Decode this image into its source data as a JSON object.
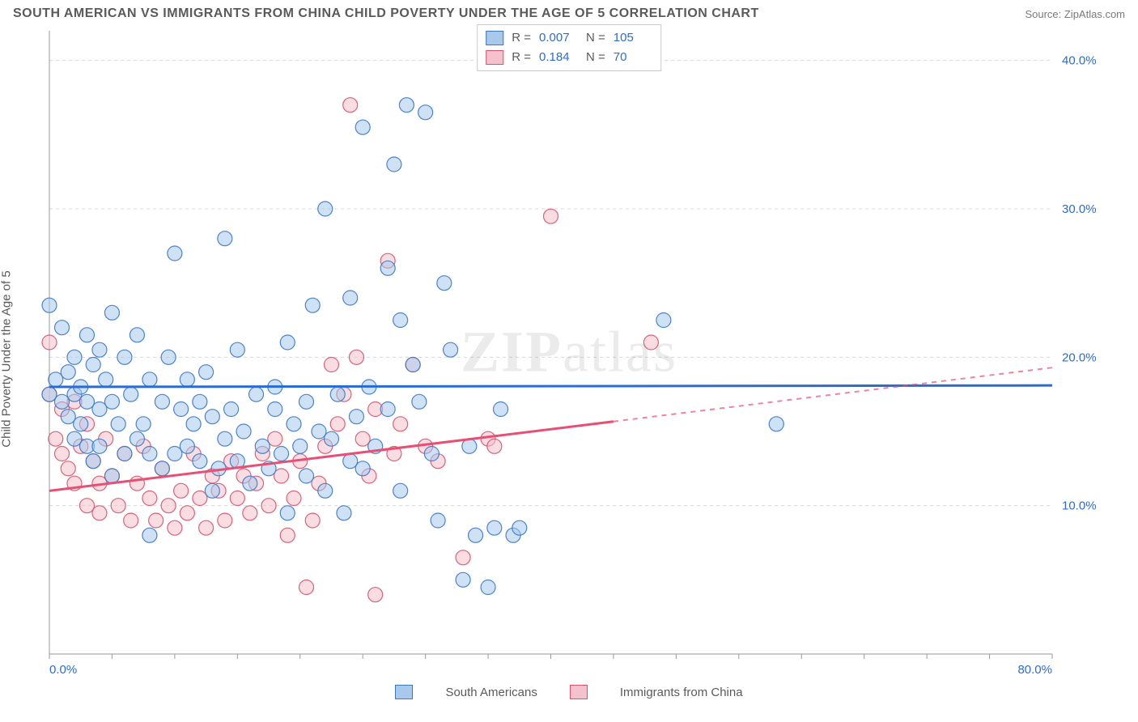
{
  "title": "SOUTH AMERICAN VS IMMIGRANTS FROM CHINA CHILD POVERTY UNDER THE AGE OF 5 CORRELATION CHART",
  "source_label": "Source: ZipAtlas.com",
  "y_axis_label": "Child Poverty Under the Age of 5",
  "watermark_bold": "ZIP",
  "watermark_rest": "atlas",
  "chart": {
    "type": "scatter",
    "xlim": [
      0,
      80
    ],
    "ylim": [
      0,
      42
    ],
    "x_ticks": [
      0,
      80
    ],
    "x_tick_labels": [
      "0.0%",
      "80.0%"
    ],
    "y_ticks": [
      10,
      20,
      30,
      40
    ],
    "y_tick_labels": [
      "10.0%",
      "20.0%",
      "30.0%",
      "40.0%"
    ],
    "grid_color": "#d8d8d8",
    "axis_color": "#9a9a9a",
    "tick_label_color": "#2b6cd4",
    "tick_fontsize": 15,
    "background_color": "#ffffff",
    "marker_radius": 9,
    "marker_opacity": 0.55,
    "series": [
      {
        "name": "South Americans",
        "fill_color": "#a8c8ec",
        "stroke_color": "#3b78c4",
        "R": "0.007",
        "N": "105",
        "trend": {
          "y_at_x0": 18.0,
          "y_at_x80": 18.1,
          "solid_until_x": 80,
          "line_color": "#2b6cd4",
          "line_width": 3
        },
        "points": [
          [
            0,
            23.5
          ],
          [
            0,
            17.5
          ],
          [
            0.5,
            18.5
          ],
          [
            1,
            17
          ],
          [
            1,
            22
          ],
          [
            1.5,
            16
          ],
          [
            1.5,
            19
          ],
          [
            2,
            20
          ],
          [
            2,
            14.5
          ],
          [
            2,
            17.5
          ],
          [
            2.5,
            18
          ],
          [
            2.5,
            15.5
          ],
          [
            3,
            21.5
          ],
          [
            3,
            14
          ],
          [
            3,
            17
          ],
          [
            3.5,
            19.5
          ],
          [
            3.5,
            13
          ],
          [
            4,
            16.5
          ],
          [
            4,
            20.5
          ],
          [
            4,
            14
          ],
          [
            4.5,
            18.5
          ],
          [
            5,
            17
          ],
          [
            5,
            23
          ],
          [
            5,
            12
          ],
          [
            5.5,
            15.5
          ],
          [
            6,
            20
          ],
          [
            6,
            13.5
          ],
          [
            6.5,
            17.5
          ],
          [
            7,
            21.5
          ],
          [
            7,
            14.5
          ],
          [
            7.5,
            15.5
          ],
          [
            8,
            18.5
          ],
          [
            8,
            13.5
          ],
          [
            8,
            8
          ],
          [
            9,
            17
          ],
          [
            9,
            12.5
          ],
          [
            9.5,
            20
          ],
          [
            10,
            13.5
          ],
          [
            10,
            27
          ],
          [
            10.5,
            16.5
          ],
          [
            11,
            18.5
          ],
          [
            11,
            14
          ],
          [
            11.5,
            15.5
          ],
          [
            12,
            17
          ],
          [
            12,
            13
          ],
          [
            12.5,
            19
          ],
          [
            13,
            11
          ],
          [
            13,
            16
          ],
          [
            13.5,
            12.5
          ],
          [
            14,
            28
          ],
          [
            14,
            14.5
          ],
          [
            14.5,
            16.5
          ],
          [
            15,
            13
          ],
          [
            15,
            20.5
          ],
          [
            15.5,
            15
          ],
          [
            16,
            11.5
          ],
          [
            16.5,
            17.5
          ],
          [
            17,
            14
          ],
          [
            17.5,
            12.5
          ],
          [
            18,
            18
          ],
          [
            18,
            16.5
          ],
          [
            18.5,
            13.5
          ],
          [
            19,
            21
          ],
          [
            19,
            9.5
          ],
          [
            19.5,
            15.5
          ],
          [
            20,
            14
          ],
          [
            20.5,
            17
          ],
          [
            20.5,
            12
          ],
          [
            21,
            23.5
          ],
          [
            21.5,
            15
          ],
          [
            22,
            11
          ],
          [
            22,
            30
          ],
          [
            22.5,
            14.5
          ],
          [
            23,
            17.5
          ],
          [
            23.5,
            9.5
          ],
          [
            24,
            24
          ],
          [
            24,
            13
          ],
          [
            24.5,
            16
          ],
          [
            25,
            12.5
          ],
          [
            25,
            35.5
          ],
          [
            25.5,
            18
          ],
          [
            26,
            14
          ],
          [
            27,
            16.5
          ],
          [
            27,
            26
          ],
          [
            27.5,
            33
          ],
          [
            28,
            11
          ],
          [
            28,
            22.5
          ],
          [
            28.5,
            37
          ],
          [
            29,
            19.5
          ],
          [
            29.5,
            17
          ],
          [
            30,
            36.5
          ],
          [
            30.5,
            13.5
          ],
          [
            31,
            9
          ],
          [
            31.5,
            25
          ],
          [
            32,
            20.5
          ],
          [
            33,
            5
          ],
          [
            33.5,
            14
          ],
          [
            34,
            8
          ],
          [
            35,
            4.5
          ],
          [
            35.5,
            8.5
          ],
          [
            36,
            16.5
          ],
          [
            37,
            8
          ],
          [
            37.5,
            8.5
          ],
          [
            49,
            22.5
          ],
          [
            58,
            15.5
          ]
        ]
      },
      {
        "name": "Immigrants from China",
        "fill_color": "#f4c1cc",
        "stroke_color": "#d4546f",
        "R": "0.184",
        "N": "70",
        "trend": {
          "y_at_x0": 11.0,
          "y_at_x80": 19.3,
          "solid_until_x": 45,
          "line_color": "#e94f74",
          "line_width": 3
        },
        "points": [
          [
            0,
            21
          ],
          [
            0,
            17.5
          ],
          [
            0.5,
            14.5
          ],
          [
            1,
            13.5
          ],
          [
            1,
            16.5
          ],
          [
            1.5,
            12.5
          ],
          [
            2,
            11.5
          ],
          [
            2,
            17
          ],
          [
            2.5,
            14
          ],
          [
            3,
            10
          ],
          [
            3,
            15.5
          ],
          [
            3.5,
            13
          ],
          [
            4,
            11.5
          ],
          [
            4,
            9.5
          ],
          [
            4.5,
            14.5
          ],
          [
            5,
            12
          ],
          [
            5.5,
            10
          ],
          [
            6,
            13.5
          ],
          [
            6.5,
            9
          ],
          [
            7,
            11.5
          ],
          [
            7.5,
            14
          ],
          [
            8,
            10.5
          ],
          [
            8.5,
            9
          ],
          [
            9,
            12.5
          ],
          [
            9.5,
            10
          ],
          [
            10,
            8.5
          ],
          [
            10.5,
            11
          ],
          [
            11,
            9.5
          ],
          [
            11.5,
            13.5
          ],
          [
            12,
            10.5
          ],
          [
            12.5,
            8.5
          ],
          [
            13,
            12
          ],
          [
            13.5,
            11
          ],
          [
            14,
            9
          ],
          [
            14.5,
            13
          ],
          [
            15,
            10.5
          ],
          [
            15.5,
            12
          ],
          [
            16,
            9.5
          ],
          [
            16.5,
            11.5
          ],
          [
            17,
            13.5
          ],
          [
            17.5,
            10
          ],
          [
            18,
            14.5
          ],
          [
            18.5,
            12
          ],
          [
            19,
            8
          ],
          [
            19.5,
            10.5
          ],
          [
            20,
            13
          ],
          [
            20.5,
            4.5
          ],
          [
            21,
            9
          ],
          [
            21.5,
            11.5
          ],
          [
            22,
            14
          ],
          [
            22.5,
            19.5
          ],
          [
            23,
            15.5
          ],
          [
            23.5,
            17.5
          ],
          [
            24,
            37
          ],
          [
            24.5,
            20
          ],
          [
            25,
            14.5
          ],
          [
            25.5,
            12
          ],
          [
            26,
            16.5
          ],
          [
            26,
            4
          ],
          [
            27,
            26.5
          ],
          [
            27.5,
            13.5
          ],
          [
            28,
            15.5
          ],
          [
            29,
            19.5
          ],
          [
            30,
            14
          ],
          [
            31,
            13
          ],
          [
            33,
            6.5
          ],
          [
            35,
            14.5
          ],
          [
            35.5,
            14
          ],
          [
            40,
            29.5
          ],
          [
            48,
            21
          ]
        ]
      }
    ]
  },
  "stats_legend": {
    "r_label": "R =",
    "n_label": "N ="
  },
  "bottom_legend": {
    "series1": "South Americans",
    "series2": "Immigrants from China"
  }
}
